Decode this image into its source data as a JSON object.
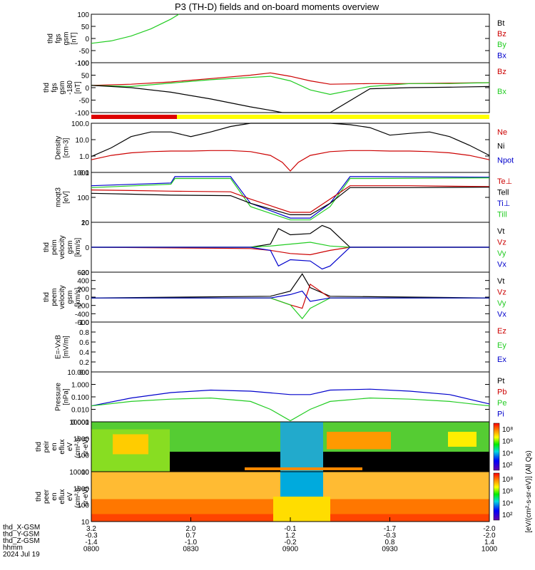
{
  "title": "P3 (TH-D) fields and on-board moments overview",
  "colors": {
    "black": "#000000",
    "red": "#cc0000",
    "green": "#22cc22",
    "blue": "#0000cc",
    "yellow": "#ffff00"
  },
  "chart_data": [
    {
      "type": "line",
      "ylabel": [
        "thd",
        "fgs",
        "gsm",
        "[nT]"
      ],
      "ylim": [
        -100,
        100
      ],
      "yticks": [
        "100",
        "50",
        "0",
        "-50",
        "-100"
      ],
      "legend": [
        {
          "name": "Bt",
          "color": "black"
        },
        {
          "name": "Bz",
          "color": "red"
        },
        {
          "name": "By",
          "color": "green"
        },
        {
          "name": "Bx",
          "color": "blue"
        }
      ],
      "series": [
        {
          "name": "By",
          "color": "green",
          "x": [
            0,
            0.05,
            0.1,
            0.15,
            0.2,
            0.22
          ],
          "y": [
            -20,
            -10,
            10,
            40,
            80,
            100
          ]
        }
      ]
    },
    {
      "type": "line",
      "ylabel": [
        "thd",
        "fgs",
        "gsm",
        "-180",
        "[nT]"
      ],
      "ylim": [
        -120,
        100
      ],
      "yticks": [
        "100",
        "50",
        "0",
        "-50",
        "-100"
      ],
      "legend": [
        {
          "name": "Bz",
          "color": "red"
        },
        {
          "name": "Bx",
          "color": "green"
        }
      ],
      "series": [
        {
          "name": "Bz",
          "color": "red",
          "x": [
            0,
            0.1,
            0.2,
            0.3,
            0.4,
            0.45,
            0.5,
            0.55,
            0.6,
            0.7,
            0.8,
            0.9,
            1
          ],
          "y": [
            0,
            5,
            15,
            30,
            45,
            55,
            40,
            20,
            5,
            8,
            8,
            10,
            12
          ]
        },
        {
          "name": "Bx",
          "color": "green",
          "x": [
            0,
            0.1,
            0.2,
            0.3,
            0.4,
            0.45,
            0.5,
            0.55,
            0.6,
            0.7,
            0.8,
            0.9,
            1
          ],
          "y": [
            0,
            -5,
            10,
            25,
            35,
            40,
            20,
            -20,
            -40,
            -5,
            8,
            8,
            12
          ]
        },
        {
          "name": "Bt",
          "color": "black",
          "x": [
            0,
            0.1,
            0.2,
            0.3,
            0.4,
            0.45,
            0.48,
            0.55,
            0.6,
            0.7,
            0.8,
            0.9,
            1
          ],
          "y": [
            0,
            -10,
            -30,
            -60,
            -95,
            -110,
            -120,
            -120,
            -120,
            -15,
            -10,
            -8,
            -5
          ]
        }
      ]
    },
    {
      "type": "line",
      "ylabel": [
        "Density",
        "[cm-3]"
      ],
      "scale": "log",
      "ylim": [
        0.04,
        100
      ],
      "yticks": [
        "100.0",
        "10.0",
        "1.0",
        "0.1"
      ],
      "legend": [
        {
          "name": "Ne",
          "color": "red"
        },
        {
          "name": "Ni",
          "color": "black"
        },
        {
          "name": "Npot",
          "color": "blue"
        }
      ],
      "series": [
        {
          "name": "Ni",
          "color": "black",
          "x": [
            0,
            0.05,
            0.1,
            0.15,
            0.2,
            0.25,
            0.3,
            0.35,
            0.4,
            0.45,
            0.5,
            0.55,
            0.6,
            0.65,
            0.7,
            0.75,
            0.8,
            0.85,
            0.9,
            0.95,
            1
          ],
          "y": [
            0.5,
            2,
            12,
            25,
            25,
            12,
            25,
            60,
            100,
            100,
            100,
            100,
            100,
            80,
            50,
            15,
            20,
            25,
            12,
            3,
            0.6
          ]
        },
        {
          "name": "Ne",
          "color": "red",
          "x": [
            0,
            0.05,
            0.1,
            0.15,
            0.2,
            0.25,
            0.3,
            0.35,
            0.4,
            0.45,
            0.48,
            0.5,
            0.52,
            0.55,
            0.6,
            0.65,
            0.7,
            0.75,
            0.8,
            0.85,
            0.9,
            0.95,
            1
          ],
          "y": [
            0.3,
            0.6,
            0.9,
            1.1,
            1.2,
            1.2,
            1.3,
            1.3,
            1.1,
            0.6,
            0.2,
            0.05,
            0.2,
            0.6,
            1.1,
            1.3,
            1.3,
            1.2,
            1.2,
            1.1,
            0.9,
            0.6,
            0.3
          ]
        }
      ]
    },
    {
      "type": "line",
      "ylabel": [
        "moqt3",
        "[eV]"
      ],
      "scale": "log",
      "ylim": [
        6,
        2500
      ],
      "yticks": [
        "1000",
        "100",
        "10"
      ],
      "legend": [
        {
          "name": "Te⊥",
          "color": "red"
        },
        {
          "name": "Tell",
          "color": "black"
        },
        {
          "name": "Ti⊥",
          "color": "blue"
        },
        {
          "name": "Till",
          "color": "green"
        }
      ],
      "series": [
        {
          "name": "Ti⊥",
          "color": "blue",
          "x": [
            0,
            0.2,
            0.21,
            0.35,
            0.4,
            0.5,
            0.55,
            0.6,
            0.65,
            0.7,
            1
          ],
          "y": [
            500,
            700,
            1500,
            1500,
            60,
            10,
            10,
            60,
            1500,
            1500,
            1400
          ]
        },
        {
          "name": "Till",
          "color": "green",
          "x": [
            0,
            0.2,
            0.21,
            0.35,
            0.4,
            0.5,
            0.55,
            0.6,
            0.65,
            0.7,
            1
          ],
          "y": [
            400,
            600,
            1200,
            1200,
            40,
            8,
            8,
            40,
            1200,
            1200,
            1300
          ]
        },
        {
          "name": "Te⊥",
          "color": "red",
          "x": [
            0,
            0.1,
            0.2,
            0.35,
            0.4,
            0.5,
            0.55,
            0.6,
            0.65,
            0.8,
            1
          ],
          "y": [
            300,
            280,
            260,
            240,
            100,
            20,
            20,
            100,
            500,
            500,
            450
          ]
        },
        {
          "name": "Tell",
          "color": "black",
          "x": [
            0,
            0.1,
            0.2,
            0.35,
            0.4,
            0.5,
            0.55,
            0.6,
            0.65,
            0.8,
            1
          ],
          "y": [
            200,
            180,
            160,
            150,
            60,
            15,
            15,
            60,
            400,
            400,
            420
          ]
        }
      ]
    },
    {
      "type": "line",
      "ylabel": [
        "thd",
        "peim",
        "velocity",
        "gsm",
        "[km/s]"
      ],
      "ylim": [
        -40,
        40
      ],
      "yticks": [
        "20",
        "0",
        "-20"
      ],
      "legend": [
        {
          "name": "Vt",
          "color": "black"
        },
        {
          "name": "Vz",
          "color": "red"
        },
        {
          "name": "Vy",
          "color": "green"
        },
        {
          "name": "Vx",
          "color": "blue"
        }
      ],
      "series": [
        {
          "name": "Vt",
          "color": "black",
          "x": [
            0,
            0.4,
            0.45,
            0.47,
            0.5,
            0.55,
            0.58,
            0.6,
            0.65,
            1
          ],
          "y": [
            0,
            0,
            5,
            30,
            20,
            22,
            35,
            30,
            0,
            0
          ]
        },
        {
          "name": "Vz",
          "color": "red",
          "x": [
            0,
            0.4,
            0.45,
            0.5,
            0.55,
            0.6,
            0.65,
            1
          ],
          "y": [
            0,
            -2,
            -5,
            -10,
            -12,
            -5,
            0,
            0
          ]
        },
        {
          "name": "Vy",
          "color": "green",
          "x": [
            0,
            0.4,
            0.45,
            0.5,
            0.55,
            0.6,
            0.65,
            1
          ],
          "y": [
            0,
            0,
            2,
            5,
            8,
            2,
            0,
            0
          ]
        },
        {
          "name": "Vx",
          "color": "blue",
          "x": [
            0,
            0.4,
            0.45,
            0.47,
            0.5,
            0.55,
            0.58,
            0.6,
            0.65,
            1
          ],
          "y": [
            0,
            0,
            -5,
            -30,
            -20,
            -22,
            -35,
            -30,
            0,
            0
          ]
        }
      ]
    },
    {
      "type": "line",
      "ylabel": [
        "thd",
        "peem",
        "velocity",
        "gsm",
        "[km/s]"
      ],
      "ylim": [
        -700,
        750
      ],
      "yticks": [
        "600",
        "400",
        "200",
        "0",
        "-200",
        "-400",
        "-600"
      ],
      "legend": [
        {
          "name": "Vt",
          "color": "black"
        },
        {
          "name": "Vz",
          "color": "red"
        },
        {
          "name": "Vy",
          "color": "green"
        },
        {
          "name": "Vx",
          "color": "blue"
        }
      ],
      "series": [
        {
          "name": "Vt",
          "color": "black",
          "x": [
            0,
            0.45,
            0.5,
            0.53,
            0.55,
            0.6,
            1
          ],
          "y": [
            0,
            50,
            200,
            700,
            300,
            50,
            0
          ]
        },
        {
          "name": "Vz",
          "color": "red",
          "x": [
            0,
            0.45,
            0.5,
            0.53,
            0.55,
            0.6,
            1
          ],
          "y": [
            0,
            0,
            -200,
            -300,
            400,
            0,
            0
          ]
        },
        {
          "name": "Vy",
          "color": "green",
          "x": [
            0,
            0.45,
            0.5,
            0.53,
            0.55,
            0.6,
            1
          ],
          "y": [
            0,
            0,
            -200,
            -600,
            -300,
            0,
            0
          ]
        },
        {
          "name": "Vx",
          "color": "blue",
          "x": [
            0,
            0.45,
            0.5,
            0.53,
            0.55,
            0.6,
            1
          ],
          "y": [
            0,
            0,
            100,
            200,
            -100,
            0,
            0
          ]
        }
      ]
    },
    {
      "type": "line",
      "ylabel": [
        "E=-VxB",
        "[mV/m]"
      ],
      "ylim": [
        0,
        1
      ],
      "yticks": [
        "1.0",
        "0.8",
        "0.6",
        "0.4",
        "0.2",
        "0.0"
      ],
      "legend": [
        {
          "name": "Ez",
          "color": "red"
        },
        {
          "name": "Ey",
          "color": "green"
        },
        {
          "name": "Ex",
          "color": "blue"
        }
      ],
      "series": []
    },
    {
      "type": "line",
      "ylabel": [
        "Pressure",
        "[nPa]"
      ],
      "scale": "log",
      "ylim": [
        0.0008,
        20
      ],
      "yticks": [
        "10.000",
        "1.000",
        "0.100",
        "0.010",
        "0.001"
      ],
      "legend": [
        {
          "name": "Pt",
          "color": "black"
        },
        {
          "name": "Pb",
          "color": "red"
        },
        {
          "name": "Pe",
          "color": "green"
        },
        {
          "name": "Pi",
          "color": "blue"
        }
      ],
      "series": [
        {
          "name": "Pi",
          "color": "blue",
          "x": [
            0,
            0.1,
            0.2,
            0.3,
            0.4,
            0.5,
            0.55,
            0.6,
            0.7,
            0.8,
            0.9,
            1
          ],
          "y": [
            0.02,
            0.1,
            0.3,
            0.5,
            0.4,
            0.2,
            0.2,
            0.5,
            0.6,
            0.4,
            0.2,
            0.03
          ]
        },
        {
          "name": "Pe",
          "color": "green",
          "x": [
            0,
            0.1,
            0.2,
            0.3,
            0.4,
            0.45,
            0.5,
            0.55,
            0.6,
            0.7,
            0.8,
            0.9,
            1
          ],
          "y": [
            0.02,
            0.05,
            0.08,
            0.1,
            0.05,
            0.01,
            0.001,
            0.01,
            0.05,
            0.1,
            0.08,
            0.05,
            0.02
          ]
        }
      ]
    },
    {
      "type": "heatmap",
      "ylabel": [
        "thd",
        "peir",
        "en",
        "eflux",
        "eV",
        "(cm²-s-",
        "sr-eV)"
      ],
      "scale": "log",
      "yticks": [
        "10000",
        "1000",
        "100",
        "10"
      ],
      "colorbar": {
        "ticks": [
          "10⁸",
          "10⁶",
          "10⁴",
          "10²"
        ],
        "label": "[eV/(cm²-s-sr-eV)] (All Qs)"
      }
    },
    {
      "type": "heatmap",
      "ylabel": [
        "thd",
        "peer",
        "en",
        "eflux",
        "eV",
        "(cm²-s-",
        "sr-eV)"
      ],
      "scale": "log",
      "yticks": [
        "10000",
        "1000",
        "100",
        "10"
      ],
      "colorbar": {
        "ticks": [
          "10⁸",
          "10⁶",
          "10⁴",
          "10²"
        ]
      }
    }
  ],
  "x_axis": {
    "row_labels": [
      "thd_X-GSM",
      "thd_Y-GSM",
      "thd_Z-GSM",
      "hhmm",
      "2024 Jul 19"
    ],
    "ticks": [
      {
        "x": 0,
        "values": [
          "3.2",
          "-0.3",
          "-1.4",
          "0800"
        ]
      },
      {
        "x": 0.25,
        "values": [
          "2.0",
          "0.7",
          "-1.0",
          "0830"
        ]
      },
      {
        "x": 0.5,
        "values": [
          "-0.1",
          "1.2",
          "-0.2",
          "0900"
        ]
      },
      {
        "x": 0.75,
        "values": [
          "-1.7",
          "-0.3",
          "0.8",
          "0930"
        ]
      },
      {
        "x": 1,
        "values": [
          "-2.0",
          "-2.0",
          "1.4",
          "1000"
        ]
      }
    ]
  }
}
